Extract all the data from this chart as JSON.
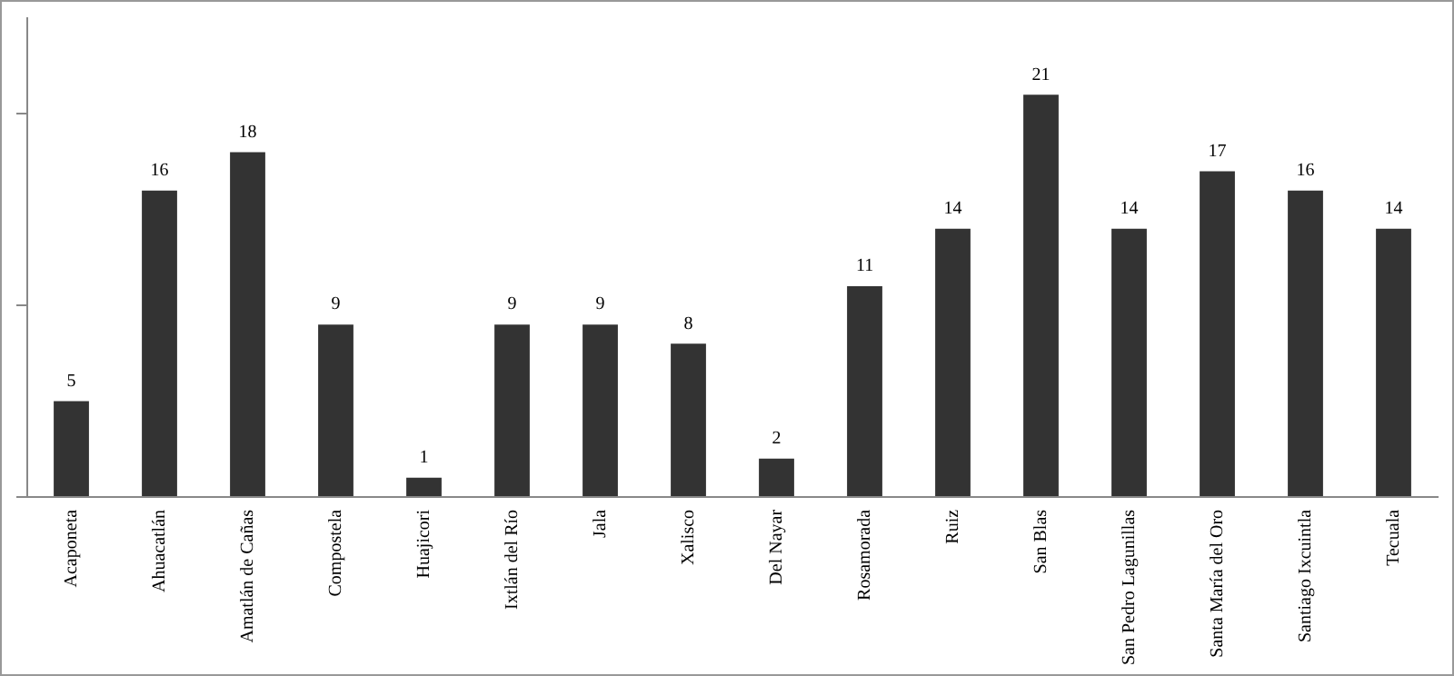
{
  "chart_data": {
    "type": "bar",
    "categories": [
      "Acaponeta",
      "Ahuacatlán",
      "Amatlán de Cañas",
      "Compostela",
      "Huajicori",
      "Ixtlán del Río",
      "Jala",
      "Xalisco",
      "Del Nayar",
      "Rosamorada",
      "Ruiz",
      "San Blas",
      "San Pedro Lagunillas",
      "Santa María del Oro",
      "Santiago Ixcuintla",
      "Tecuala"
    ],
    "values": [
      5,
      16,
      18,
      9,
      1,
      9,
      9,
      8,
      2,
      11,
      14,
      21,
      14,
      17,
      16,
      14
    ],
    "color": "#333333",
    "ylim": [
      0,
      25
    ],
    "yticks": [
      {
        "value": 0,
        "label": null
      },
      {
        "value": 10,
        "label": null
      },
      {
        "value": 20,
        "label": null
      }
    ],
    "tick_labels": "x",
    "data_labels": true,
    "grid": false,
    "legend": false
  }
}
